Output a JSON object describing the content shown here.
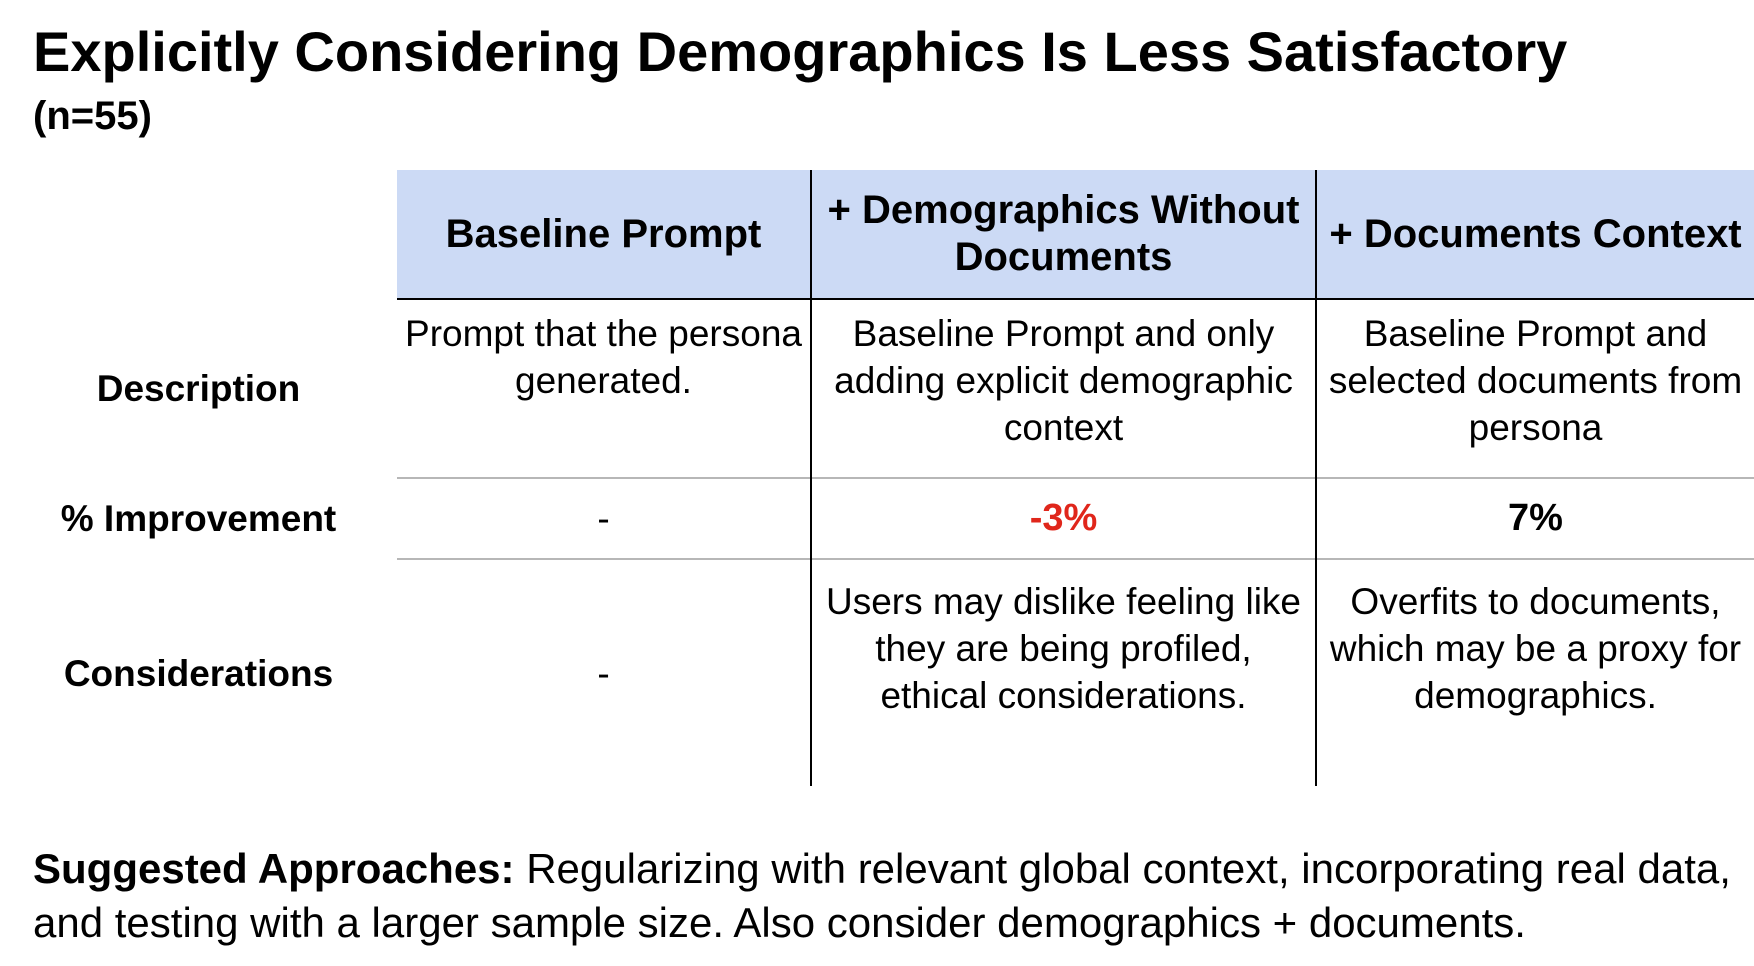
{
  "header": {
    "title": "Explicitly Considering Demographics Is Less Satisfactory",
    "subtitle": "(n=55)"
  },
  "colors": {
    "header_bg": "#ccdaf5",
    "negative": "#e0261b",
    "text": "#000000",
    "grid_dark": "#000000",
    "grid_light": "#b7b7b7"
  },
  "table": {
    "columns": [
      "Baseline Prompt",
      "+ Demographics Without Documents",
      "+ Documents Context"
    ],
    "rows": [
      {
        "label": "Description",
        "cells": [
          "Prompt that the persona generated.",
          "Baseline Prompt and only adding explicit demographic context",
          "Baseline Prompt and selected documents from persona"
        ]
      },
      {
        "label": "% Improvement",
        "cells": [
          "-",
          "-3%",
          "7%"
        ]
      },
      {
        "label": "Considerations",
        "cells": [
          "-",
          "Users may dislike feeling like they are being profiled, ethical considerations.",
          "Overfits to documents, which may be a proxy for demographics."
        ]
      }
    ]
  },
  "footer": {
    "lead": "Suggested Approaches:",
    "text": " Regularizing with relevant global context, incorporating real data, and testing with a larger sample size. Also consider demographics + documents."
  }
}
